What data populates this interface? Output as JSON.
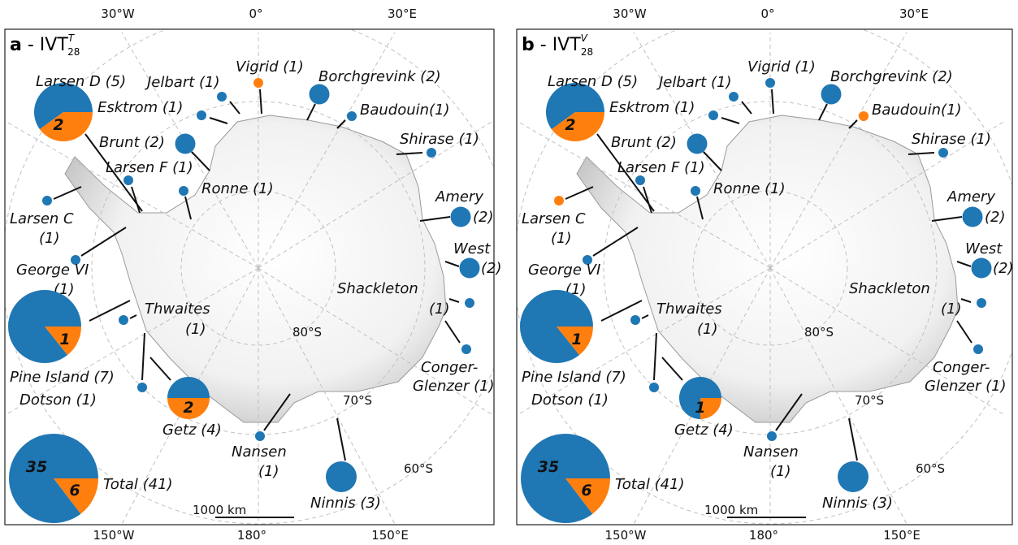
{
  "colors": {
    "blue": "#1f77b4",
    "orange": "#ff7f0e"
  },
  "graticule": {
    "top": [
      "30°W",
      "0°",
      "30°E"
    ],
    "bottom": [
      "150°W",
      "180°",
      "150°E"
    ],
    "lat": [
      "80°S",
      "70°S",
      "60°S"
    ]
  },
  "scale_bar": "1000 km",
  "panels": [
    {
      "title": {
        "letter": "a",
        "sep": " - ",
        "main": "IVT",
        "sup": "T",
        "sub": "28"
      },
      "shelves": [
        {
          "label": [
            "Larsen D (5)"
          ],
          "n": 5,
          "pie": {
            "blue": 3,
            "orange": 2
          }
        },
        {
          "label": [
            "Esktrom (1)"
          ],
          "n": 1,
          "color": "blue"
        },
        {
          "label": [
            "Jelbart (1)"
          ],
          "n": 1,
          "color": "blue"
        },
        {
          "label": [
            "Vigrid (1)"
          ],
          "n": 1,
          "color": "orange"
        },
        {
          "label": [
            "Borchgrevink (2)"
          ],
          "n": 2,
          "color": "blue"
        },
        {
          "label": [
            "Baudouin(1)"
          ],
          "n": 1,
          "color": "blue"
        },
        {
          "label": [
            "Brunt (2)"
          ],
          "n": 2,
          "color": "blue"
        },
        {
          "label": [
            "Larsen F (1)"
          ],
          "n": 1,
          "color": "blue"
        },
        {
          "label": [
            "Ronne (1)"
          ],
          "n": 1,
          "color": "blue"
        },
        {
          "label": [
            "Shirase (1)"
          ],
          "n": 1,
          "color": "blue"
        },
        {
          "label": [
            "Larsen C",
            "(1)"
          ],
          "n": 1,
          "color": "blue"
        },
        {
          "label": [
            "Amery",
            "(2)"
          ],
          "n": 2,
          "color": "blue"
        },
        {
          "label": [
            "George VI",
            "(1)"
          ],
          "n": 1,
          "color": "blue"
        },
        {
          "label": [
            "West",
            "(2)"
          ],
          "n": 2,
          "color": "blue"
        },
        {
          "label": [
            "Shackleton",
            "(1)"
          ],
          "n": 1,
          "color": "blue"
        },
        {
          "label": [
            "Pine Island (7)"
          ],
          "n": 7,
          "pie": {
            "blue": 6,
            "orange": 1
          }
        },
        {
          "label": [
            "Thwaites",
            "(1)"
          ],
          "n": 1,
          "color": "blue"
        },
        {
          "label": [
            "Conger-",
            "Glenzer (1)"
          ],
          "n": 1,
          "color": "blue"
        },
        {
          "label": [
            "Dotson (1)"
          ],
          "n": 1,
          "color": "blue"
        },
        {
          "label": [
            "Getz (4)"
          ],
          "n": 4,
          "pie": {
            "blue": 2,
            "orange": 2
          }
        },
        {
          "label": [
            "Nansen",
            "(1)"
          ],
          "n": 1,
          "color": "blue"
        },
        {
          "label": [
            "Ninnis (3)"
          ],
          "n": 3,
          "color": "blue"
        },
        {
          "label": [
            "Total (41)"
          ],
          "n": 41,
          "pie": {
            "blue": 35,
            "orange": 6
          }
        }
      ]
    },
    {
      "title": {
        "letter": "b",
        "sep": " - ",
        "main": "IVT",
        "sup": "V",
        "sub": "28"
      },
      "shelves": [
        {
          "label": [
            "Larsen D (5)"
          ],
          "n": 5,
          "pie": {
            "blue": 3,
            "orange": 2
          }
        },
        {
          "label": [
            "Esktrom (1)"
          ],
          "n": 1,
          "color": "blue"
        },
        {
          "label": [
            "Jelbart (1)"
          ],
          "n": 1,
          "color": "blue"
        },
        {
          "label": [
            "Vigrid (1)"
          ],
          "n": 1,
          "color": "blue"
        },
        {
          "label": [
            "Borchgrevink (2)"
          ],
          "n": 2,
          "color": "blue"
        },
        {
          "label": [
            "Baudouin(1)"
          ],
          "n": 1,
          "color": "orange"
        },
        {
          "label": [
            "Brunt (2)"
          ],
          "n": 2,
          "color": "blue"
        },
        {
          "label": [
            "Larsen F (1)"
          ],
          "n": 1,
          "color": "blue"
        },
        {
          "label": [
            "Ronne (1)"
          ],
          "n": 1,
          "color": "blue"
        },
        {
          "label": [
            "Shirase (1)"
          ],
          "n": 1,
          "color": "blue"
        },
        {
          "label": [
            "Larsen C",
            "(1)"
          ],
          "n": 1,
          "color": "orange"
        },
        {
          "label": [
            "Amery",
            "(2)"
          ],
          "n": 2,
          "color": "blue"
        },
        {
          "label": [
            "George VI",
            "(1)"
          ],
          "n": 1,
          "color": "blue"
        },
        {
          "label": [
            "West",
            "(2)"
          ],
          "n": 2,
          "color": "blue"
        },
        {
          "label": [
            "Shackleton",
            "(1)"
          ],
          "n": 1,
          "color": "blue"
        },
        {
          "label": [
            "Pine Island (7)"
          ],
          "n": 7,
          "pie": {
            "blue": 6,
            "orange": 1
          }
        },
        {
          "label": [
            "Thwaites",
            "(1)"
          ],
          "n": 1,
          "color": "blue"
        },
        {
          "label": [
            "Conger-",
            "Glenzer (1)"
          ],
          "n": 1,
          "color": "blue"
        },
        {
          "label": [
            "Dotson (1)"
          ],
          "n": 1,
          "color": "blue"
        },
        {
          "label": [
            "Getz (4)"
          ],
          "n": 4,
          "pie": {
            "blue": 3,
            "orange": 1
          }
        },
        {
          "label": [
            "Nansen",
            "(1)"
          ],
          "n": 1,
          "color": "blue"
        },
        {
          "label": [
            "Ninnis (3)"
          ],
          "n": 3,
          "color": "blue"
        },
        {
          "label": [
            "Total (41)"
          ],
          "n": 41,
          "pie": {
            "blue": 35,
            "orange": 6
          }
        }
      ]
    }
  ]
}
